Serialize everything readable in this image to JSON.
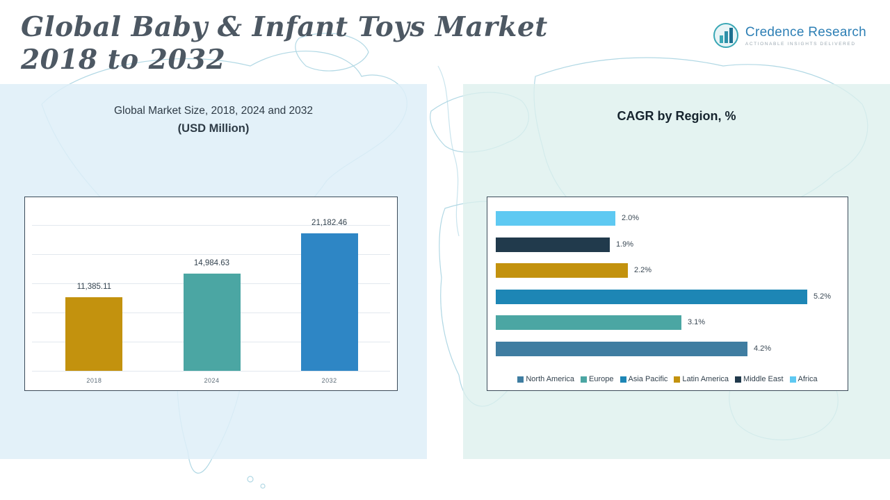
{
  "page": {
    "title_line1": "Global Baby & Infant Toys Market",
    "title_line2": "2018 to 2032"
  },
  "logo": {
    "name": "Credence Research",
    "tagline": "Actionable Insights Delivered"
  },
  "left_chart": {
    "title_line1": "Global Market Size, 2018, 2024 and 2032",
    "title_line2": "(USD Million)"
  },
  "right_chart": {
    "title": "CAGR by Region, %"
  },
  "colors": {
    "gold": "#c3920e",
    "teal": "#4ba6a3",
    "blue": "#2e86c5",
    "asia_blue": "#1d86b5",
    "light_blue": "#5ec9f2",
    "navy": "#213a4c",
    "steel_blue": "#3f7da1"
  },
  "chart_data": [
    {
      "type": "bar",
      "orientation": "vertical",
      "title": "Global Market Size, 2018, 2024 and 2032 (USD Million)",
      "categories": [
        "2018",
        "2024",
        "2032"
      ],
      "values": [
        11385.11,
        14984.63,
        21182.46
      ],
      "labels": [
        "11,385.11",
        "14,984.63",
        "21,182.46"
      ],
      "colors": [
        "#c3920e",
        "#4ba6a3",
        "#2e86c5"
      ],
      "xlabel": "",
      "ylabel": "",
      "ylim": [
        0,
        22500
      ],
      "grid": true,
      "legend_position": "none"
    },
    {
      "type": "bar",
      "orientation": "horizontal",
      "title": "CAGR by Region, %",
      "categories": [
        "Africa",
        "Middle East",
        "Latin America",
        "Asia Pacific",
        "Europe",
        "North America"
      ],
      "values": [
        2.0,
        1.9,
        2.2,
        5.2,
        3.1,
        4.2
      ],
      "labels": [
        "2.0%",
        "1.9%",
        "2.2%",
        "5.2%",
        "3.1%",
        "4.2%"
      ],
      "colors": [
        "#5ec9f2",
        "#213a4c",
        "#c3920e",
        "#1d86b5",
        "#4ba6a3",
        "#3f7da1"
      ],
      "xlabel": "",
      "ylabel": "",
      "xlim": [
        0,
        5.5
      ],
      "grid": false,
      "legend_position": "bottom",
      "legend": [
        {
          "label": "North America",
          "color": "#3f7da1"
        },
        {
          "label": "Europe",
          "color": "#4ba6a3"
        },
        {
          "label": "Asia Pacific",
          "color": "#1d86b5"
        },
        {
          "label": "Latin America",
          "color": "#c3920e"
        },
        {
          "label": "Middle East",
          "color": "#213a4c"
        },
        {
          "label": "Africa",
          "color": "#5ec9f2"
        }
      ]
    }
  ]
}
